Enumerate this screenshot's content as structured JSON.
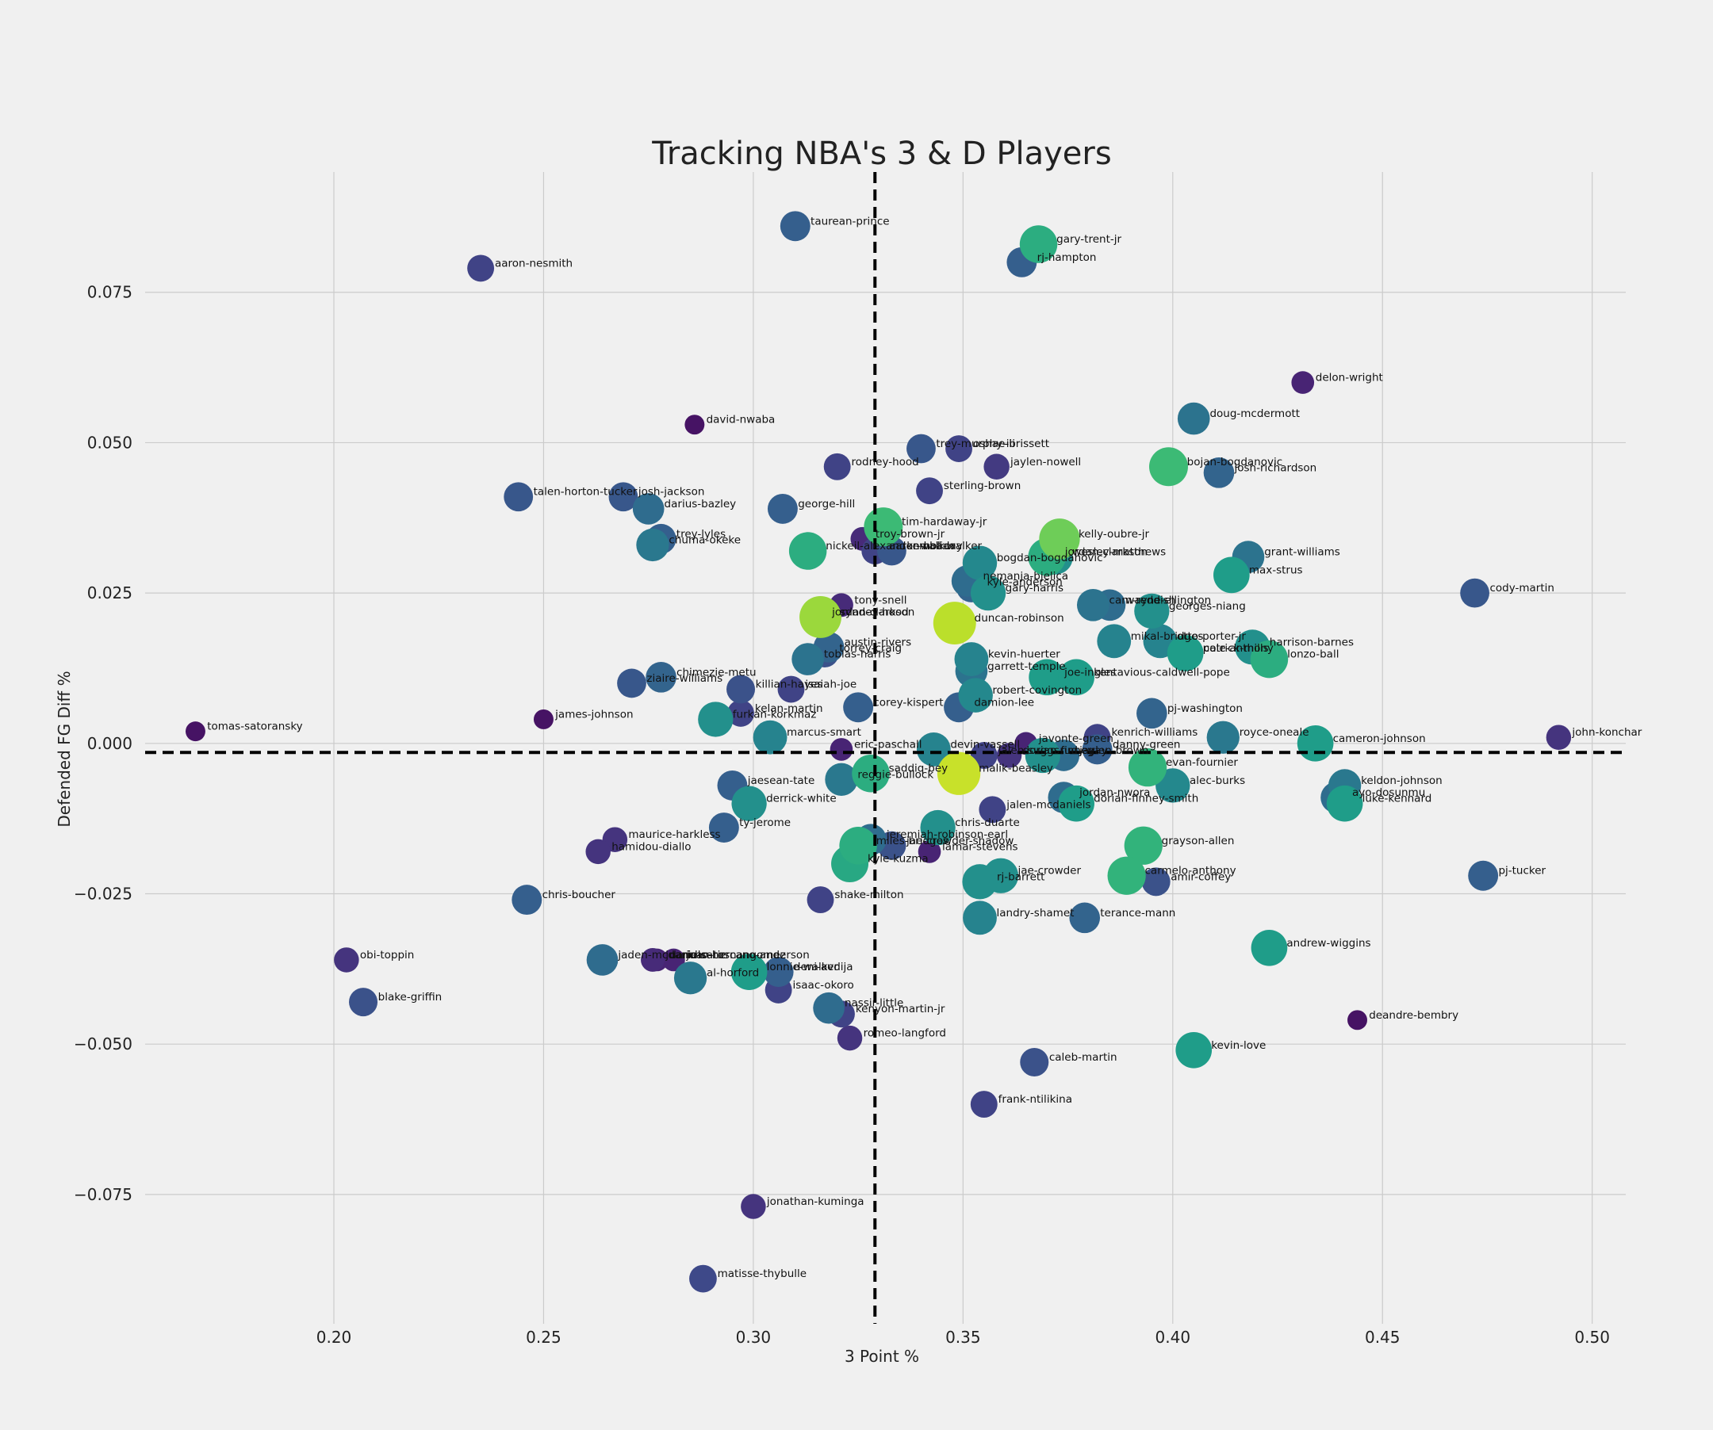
{
  "chart_data": {
    "type": "scatter",
    "title": "Tracking NBA's 3 & D Players",
    "xlabel": "3 Point %",
    "ylabel": "Defended FG Diff %",
    "xlim": [
      0.155,
      0.508
    ],
    "ylim": [
      -0.0965,
      0.095
    ],
    "xticks": [
      0.2,
      0.25,
      0.3,
      0.35,
      0.4,
      0.45,
      0.5
    ],
    "xtick_labels": [
      "0.20",
      "0.25",
      "0.30",
      "0.35",
      "0.40",
      "0.45",
      "0.50"
    ],
    "yticks": [
      -0.075,
      -0.05,
      -0.025,
      0.0,
      0.025,
      0.05,
      0.075
    ],
    "ytick_labels": [
      "−0.075",
      "−0.050",
      "−0.025",
      "0.000",
      "0.025",
      "0.050",
      "0.075"
    ],
    "grid": true,
    "reference_lines": {
      "x": 0.329,
      "y": -0.0015
    },
    "size_color_scale": "viridis",
    "points": [
      {
        "name": "taurean-prince",
        "x": 0.31,
        "y": 0.086,
        "s": 0.3
      },
      {
        "name": "gary-trent-jr",
        "x": 0.368,
        "y": 0.083,
        "s": 0.62
      },
      {
        "name": "rj-hampton",
        "x": 0.364,
        "y": 0.08,
        "s": 0.3
      },
      {
        "name": "aaron-nesmith",
        "x": 0.235,
        "y": 0.079,
        "s": 0.2
      },
      {
        "name": "delon-wright",
        "x": 0.431,
        "y": 0.06,
        "s": 0.1
      },
      {
        "name": "doug-mcdermott",
        "x": 0.405,
        "y": 0.054,
        "s": 0.38
      },
      {
        "name": "david-nwaba",
        "x": 0.286,
        "y": 0.053,
        "s": 0.05
      },
      {
        "name": "trey-murphy-iii",
        "x": 0.34,
        "y": 0.049,
        "s": 0.27
      },
      {
        "name": "oshae-brissett",
        "x": 0.349,
        "y": 0.049,
        "s": 0.2
      },
      {
        "name": "bojan-bogdanovic",
        "x": 0.399,
        "y": 0.046,
        "s": 0.68
      },
      {
        "name": "josh-richardson",
        "x": 0.411,
        "y": 0.045,
        "s": 0.32
      },
      {
        "name": "rodney-hood",
        "x": 0.32,
        "y": 0.046,
        "s": 0.2
      },
      {
        "name": "jaylen-nowell",
        "x": 0.358,
        "y": 0.046,
        "s": 0.17
      },
      {
        "name": "sterling-brown",
        "x": 0.342,
        "y": 0.042,
        "s": 0.2
      },
      {
        "name": "talen-horton-tucker",
        "x": 0.244,
        "y": 0.041,
        "s": 0.27
      },
      {
        "name": "josh-jackson",
        "x": 0.269,
        "y": 0.041,
        "s": 0.27
      },
      {
        "name": "darius-bazley",
        "x": 0.275,
        "y": 0.039,
        "s": 0.35
      },
      {
        "name": "george-hill",
        "x": 0.307,
        "y": 0.039,
        "s": 0.3
      },
      {
        "name": "tim-hardaway-jr",
        "x": 0.331,
        "y": 0.036,
        "s": 0.68
      },
      {
        "name": "kelly-oubre-jr",
        "x": 0.373,
        "y": 0.034,
        "s": 0.78
      },
      {
        "name": "troy-brown-jr",
        "x": 0.326,
        "y": 0.034,
        "s": 0.12
      },
      {
        "name": "trey-lyles",
        "x": 0.278,
        "y": 0.034,
        "s": 0.3
      },
      {
        "name": "chuma-okeke",
        "x": 0.276,
        "y": 0.033,
        "s": 0.4
      },
      {
        "name": "nickeil-alexander-walker",
        "x": 0.313,
        "y": 0.032,
        "s": 0.62
      },
      {
        "name": "aaron-holiday",
        "x": 0.329,
        "y": 0.032,
        "s": 0.2
      },
      {
        "name": "kemba-walker",
        "x": 0.333,
        "y": 0.032,
        "s": 0.27
      },
      {
        "name": "jordan-clarkson",
        "x": 0.37,
        "y": 0.031,
        "s": 0.62
      },
      {
        "name": "wesley-matthews",
        "x": 0.372,
        "y": 0.031,
        "s": 0.5
      },
      {
        "name": "grant-williams",
        "x": 0.418,
        "y": 0.031,
        "s": 0.38
      },
      {
        "name": "bogdan-bogdanovic",
        "x": 0.354,
        "y": 0.03,
        "s": 0.47
      },
      {
        "name": "max-strus",
        "x": 0.414,
        "y": 0.028,
        "s": 0.55
      },
      {
        "name": "nemanja-bjelica",
        "x": 0.351,
        "y": 0.027,
        "s": 0.35
      },
      {
        "name": "kyle-anderson",
        "x": 0.352,
        "y": 0.026,
        "s": 0.32
      },
      {
        "name": "gary-harris",
        "x": 0.356,
        "y": 0.025,
        "s": 0.5
      },
      {
        "name": "cody-martin",
        "x": 0.472,
        "y": 0.025,
        "s": 0.27
      },
      {
        "name": "tony-snell",
        "x": 0.321,
        "y": 0.023,
        "s": 0.12
      },
      {
        "name": "cam-reddish",
        "x": 0.381,
        "y": 0.023,
        "s": 0.38
      },
      {
        "name": "wayne-ellington",
        "x": 0.385,
        "y": 0.023,
        "s": 0.35
      },
      {
        "name": "georges-niang",
        "x": 0.395,
        "y": 0.022,
        "s": 0.5
      },
      {
        "name": "syndey-hood",
        "x": 0.316,
        "y": 0.021,
        "s": 0.85
      },
      {
        "name": "jordan-clarkson",
        "x": 0.315,
        "y": 0.021,
        "s": 0.35
      },
      {
        "name": "duncan-robinson",
        "x": 0.348,
        "y": 0.02,
        "s": 0.9
      },
      {
        "name": "austin-rivers",
        "x": 0.318,
        "y": 0.016,
        "s": 0.32
      },
      {
        "name": "mikal-bridges",
        "x": 0.386,
        "y": 0.017,
        "s": 0.45
      },
      {
        "name": "otto-porter-jr",
        "x": 0.397,
        "y": 0.017,
        "s": 0.45
      },
      {
        "name": "harrison-barnes",
        "x": 0.419,
        "y": 0.016,
        "s": 0.5
      },
      {
        "name": "patrick-mills",
        "x": 0.403,
        "y": 0.015,
        "s": 0.55
      },
      {
        "name": "cole-anthony",
        "x": 0.404,
        "y": 0.015,
        "s": 0.2
      },
      {
        "name": "torrey-craig",
        "x": 0.317,
        "y": 0.015,
        "s": 0.25
      },
      {
        "name": "lonzo-ball",
        "x": 0.423,
        "y": 0.014,
        "s": 0.62
      },
      {
        "name": "tobias-harris",
        "x": 0.313,
        "y": 0.014,
        "s": 0.38
      },
      {
        "name": "kevin-huerter",
        "x": 0.352,
        "y": 0.014,
        "s": 0.45
      },
      {
        "name": "garrett-temple",
        "x": 0.352,
        "y": 0.012,
        "s": 0.38
      },
      {
        "name": "joe-ingles",
        "x": 0.37,
        "y": 0.011,
        "s": 0.55
      },
      {
        "name": "kentavious-caldwell-pope",
        "x": 0.377,
        "y": 0.011,
        "s": 0.55
      },
      {
        "name": "chimezie-metu",
        "x": 0.278,
        "y": 0.011,
        "s": 0.32
      },
      {
        "name": "ziaire-williams",
        "x": 0.271,
        "y": 0.01,
        "s": 0.27
      },
      {
        "name": "killian-hayes",
        "x": 0.297,
        "y": 0.009,
        "s": 0.25
      },
      {
        "name": "isaiah-joe",
        "x": 0.309,
        "y": 0.009,
        "s": 0.2
      },
      {
        "name": "robert-covington",
        "x": 0.353,
        "y": 0.008,
        "s": 0.47
      },
      {
        "name": "corey-kispert",
        "x": 0.325,
        "y": 0.006,
        "s": 0.3
      },
      {
        "name": "damion-lee",
        "x": 0.349,
        "y": 0.006,
        "s": 0.3
      },
      {
        "name": "pj-washington",
        "x": 0.395,
        "y": 0.005,
        "s": 0.32
      },
      {
        "name": "kelan-martin",
        "x": 0.297,
        "y": 0.005,
        "s": 0.2
      },
      {
        "name": "furkan-korkmaz",
        "x": 0.291,
        "y": 0.004,
        "s": 0.5
      },
      {
        "name": "james-johnson",
        "x": 0.25,
        "y": 0.004,
        "s": 0.05
      },
      {
        "name": "tomas-satoransky",
        "x": 0.167,
        "y": 0.002,
        "s": 0.05
      },
      {
        "name": "marcus-smart",
        "x": 0.304,
        "y": 0.001,
        "s": 0.45
      },
      {
        "name": "kenrich-williams",
        "x": 0.382,
        "y": 0.001,
        "s": 0.2
      },
      {
        "name": "royce-oneale",
        "x": 0.412,
        "y": 0.001,
        "s": 0.4
      },
      {
        "name": "john-konchar",
        "x": 0.492,
        "y": 0.001,
        "s": 0.15
      },
      {
        "name": "cameron-johnson",
        "x": 0.434,
        "y": 0.0,
        "s": 0.55
      },
      {
        "name": "javonte-green",
        "x": 0.365,
        "y": 0.0,
        "s": 0.1
      },
      {
        "name": "eric-paschall",
        "x": 0.321,
        "y": -0.001,
        "s": 0.1
      },
      {
        "name": "devin-vassell",
        "x": 0.343,
        "y": -0.001,
        "s": 0.45
      },
      {
        "name": "danny-green",
        "x": 0.382,
        "y": -0.001,
        "s": 0.3
      },
      {
        "name": "jalen-suggs",
        "x": 0.355,
        "y": -0.002,
        "s": 0.2
      },
      {
        "name": "dorian-finney",
        "x": 0.361,
        "y": -0.002,
        "s": 0.15
      },
      {
        "name": "rudy-gay",
        "x": 0.369,
        "y": -0.002,
        "s": 0.5
      },
      {
        "name": "jaylen-brown",
        "x": 0.374,
        "y": -0.002,
        "s": 0.35
      },
      {
        "name": "evan-fournier",
        "x": 0.394,
        "y": -0.004,
        "s": 0.65
      },
      {
        "name": "saddiq-bey",
        "x": 0.328,
        "y": -0.005,
        "s": 0.62
      },
      {
        "name": "malik-beasley",
        "x": 0.349,
        "y": -0.005,
        "s": 0.92
      },
      {
        "name": "reggie-bullock",
        "x": 0.321,
        "y": -0.006,
        "s": 0.4
      },
      {
        "name": "jaesean-tate",
        "x": 0.295,
        "y": -0.007,
        "s": 0.3
      },
      {
        "name": "alec-burks",
        "x": 0.4,
        "y": -0.007,
        "s": 0.47
      },
      {
        "name": "keldon-johnson",
        "x": 0.441,
        "y": -0.007,
        "s": 0.4
      },
      {
        "name": "ayo-dosunmu",
        "x": 0.439,
        "y": -0.009,
        "s": 0.35
      },
      {
        "name": "jordan-nwora",
        "x": 0.374,
        "y": -0.009,
        "s": 0.35
      },
      {
        "name": "dorian-finney-smith",
        "x": 0.377,
        "y": -0.01,
        "s": 0.55
      },
      {
        "name": "luke-kennard",
        "x": 0.441,
        "y": -0.01,
        "s": 0.55
      },
      {
        "name": "derrick-white",
        "x": 0.299,
        "y": -0.01,
        "s": 0.5
      },
      {
        "name": "jalen-mcdaniels",
        "x": 0.357,
        "y": -0.011,
        "s": 0.2
      },
      {
        "name": "ty-jerome",
        "x": 0.293,
        "y": -0.014,
        "s": 0.3
      },
      {
        "name": "chris-duarte",
        "x": 0.344,
        "y": -0.014,
        "s": 0.5
      },
      {
        "name": "maurice-harkless",
        "x": 0.267,
        "y": -0.016,
        "s": 0.15
      },
      {
        "name": "jeremiah-robinson-earl",
        "x": 0.328,
        "y": -0.016,
        "s": 0.35
      },
      {
        "name": "miles-bridges",
        "x": 0.325,
        "y": -0.017,
        "s": 0.62
      },
      {
        "name": "jae-crowder-shadow",
        "x": 0.333,
        "y": -0.017,
        "s": 0.25
      },
      {
        "name": "grayson-allen",
        "x": 0.393,
        "y": -0.017,
        "s": 0.65
      },
      {
        "name": "lamar-stevens",
        "x": 0.342,
        "y": -0.018,
        "s": 0.1
      },
      {
        "name": "hamidou-diallo",
        "x": 0.263,
        "y": -0.018,
        "s": 0.15
      },
      {
        "name": "kyle-kuzma",
        "x": 0.323,
        "y": -0.02,
        "s": 0.6
      },
      {
        "name": "pj-tucker",
        "x": 0.474,
        "y": -0.022,
        "s": 0.3
      },
      {
        "name": "carmelo-anthony",
        "x": 0.389,
        "y": -0.022,
        "s": 0.65
      },
      {
        "name": "jae-crowder",
        "x": 0.359,
        "y": -0.022,
        "s": 0.5
      },
      {
        "name": "amir-coffey",
        "x": 0.396,
        "y": -0.023,
        "s": 0.25
      },
      {
        "name": "rj-barrett",
        "x": 0.354,
        "y": -0.023,
        "s": 0.5
      },
      {
        "name": "chris-boucher",
        "x": 0.246,
        "y": -0.026,
        "s": 0.3
      },
      {
        "name": "shake-milton",
        "x": 0.316,
        "y": -0.026,
        "s": 0.2
      },
      {
        "name": "landry-shamet",
        "x": 0.354,
        "y": -0.029,
        "s": 0.45
      },
      {
        "name": "terance-mann",
        "x": 0.379,
        "y": -0.029,
        "s": 0.32
      },
      {
        "name": "andrew-wiggins",
        "x": 0.423,
        "y": -0.034,
        "s": 0.55
      },
      {
        "name": "obi-toppin",
        "x": 0.203,
        "y": -0.036,
        "s": 0.15
      },
      {
        "name": "jaden-mcdaniels",
        "x": 0.264,
        "y": -0.036,
        "s": 0.35
      },
      {
        "name": "juancho-hernangomez",
        "x": 0.276,
        "y": -0.036,
        "s": 0.12
      },
      {
        "name": "dario-saric",
        "x": 0.277,
        "y": -0.036,
        "s": 0.1
      },
      {
        "name": "juan-toscano-anderson",
        "x": 0.281,
        "y": -0.036,
        "s": 0.1
      },
      {
        "name": "lonnie-walker",
        "x": 0.299,
        "y": -0.038,
        "s": 0.55
      },
      {
        "name": "deni-avdija",
        "x": 0.306,
        "y": -0.038,
        "s": 0.3
      },
      {
        "name": "al-horford",
        "x": 0.285,
        "y": -0.039,
        "s": 0.4
      },
      {
        "name": "isaac-okoro",
        "x": 0.306,
        "y": -0.041,
        "s": 0.2
      },
      {
        "name": "blake-griffin",
        "x": 0.207,
        "y": -0.043,
        "s": 0.25
      },
      {
        "name": "nassir-little",
        "x": 0.318,
        "y": -0.044,
        "s": 0.35
      },
      {
        "name": "kenyon-martin-jr",
        "x": 0.321,
        "y": -0.045,
        "s": 0.2
      },
      {
        "name": "deandre-bembry",
        "x": 0.444,
        "y": -0.046,
        "s": 0.05
      },
      {
        "name": "romeo-langford",
        "x": 0.323,
        "y": -0.049,
        "s": 0.15
      },
      {
        "name": "kevin-love",
        "x": 0.405,
        "y": -0.051,
        "s": 0.55
      },
      {
        "name": "caleb-martin",
        "x": 0.367,
        "y": -0.053,
        "s": 0.25
      },
      {
        "name": "frank-ntilikina",
        "x": 0.355,
        "y": -0.06,
        "s": 0.2
      },
      {
        "name": "jonathan-kuminga",
        "x": 0.3,
        "y": -0.077,
        "s": 0.15
      },
      {
        "name": "matisse-thybulle",
        "x": 0.288,
        "y": -0.089,
        "s": 0.22
      }
    ]
  }
}
